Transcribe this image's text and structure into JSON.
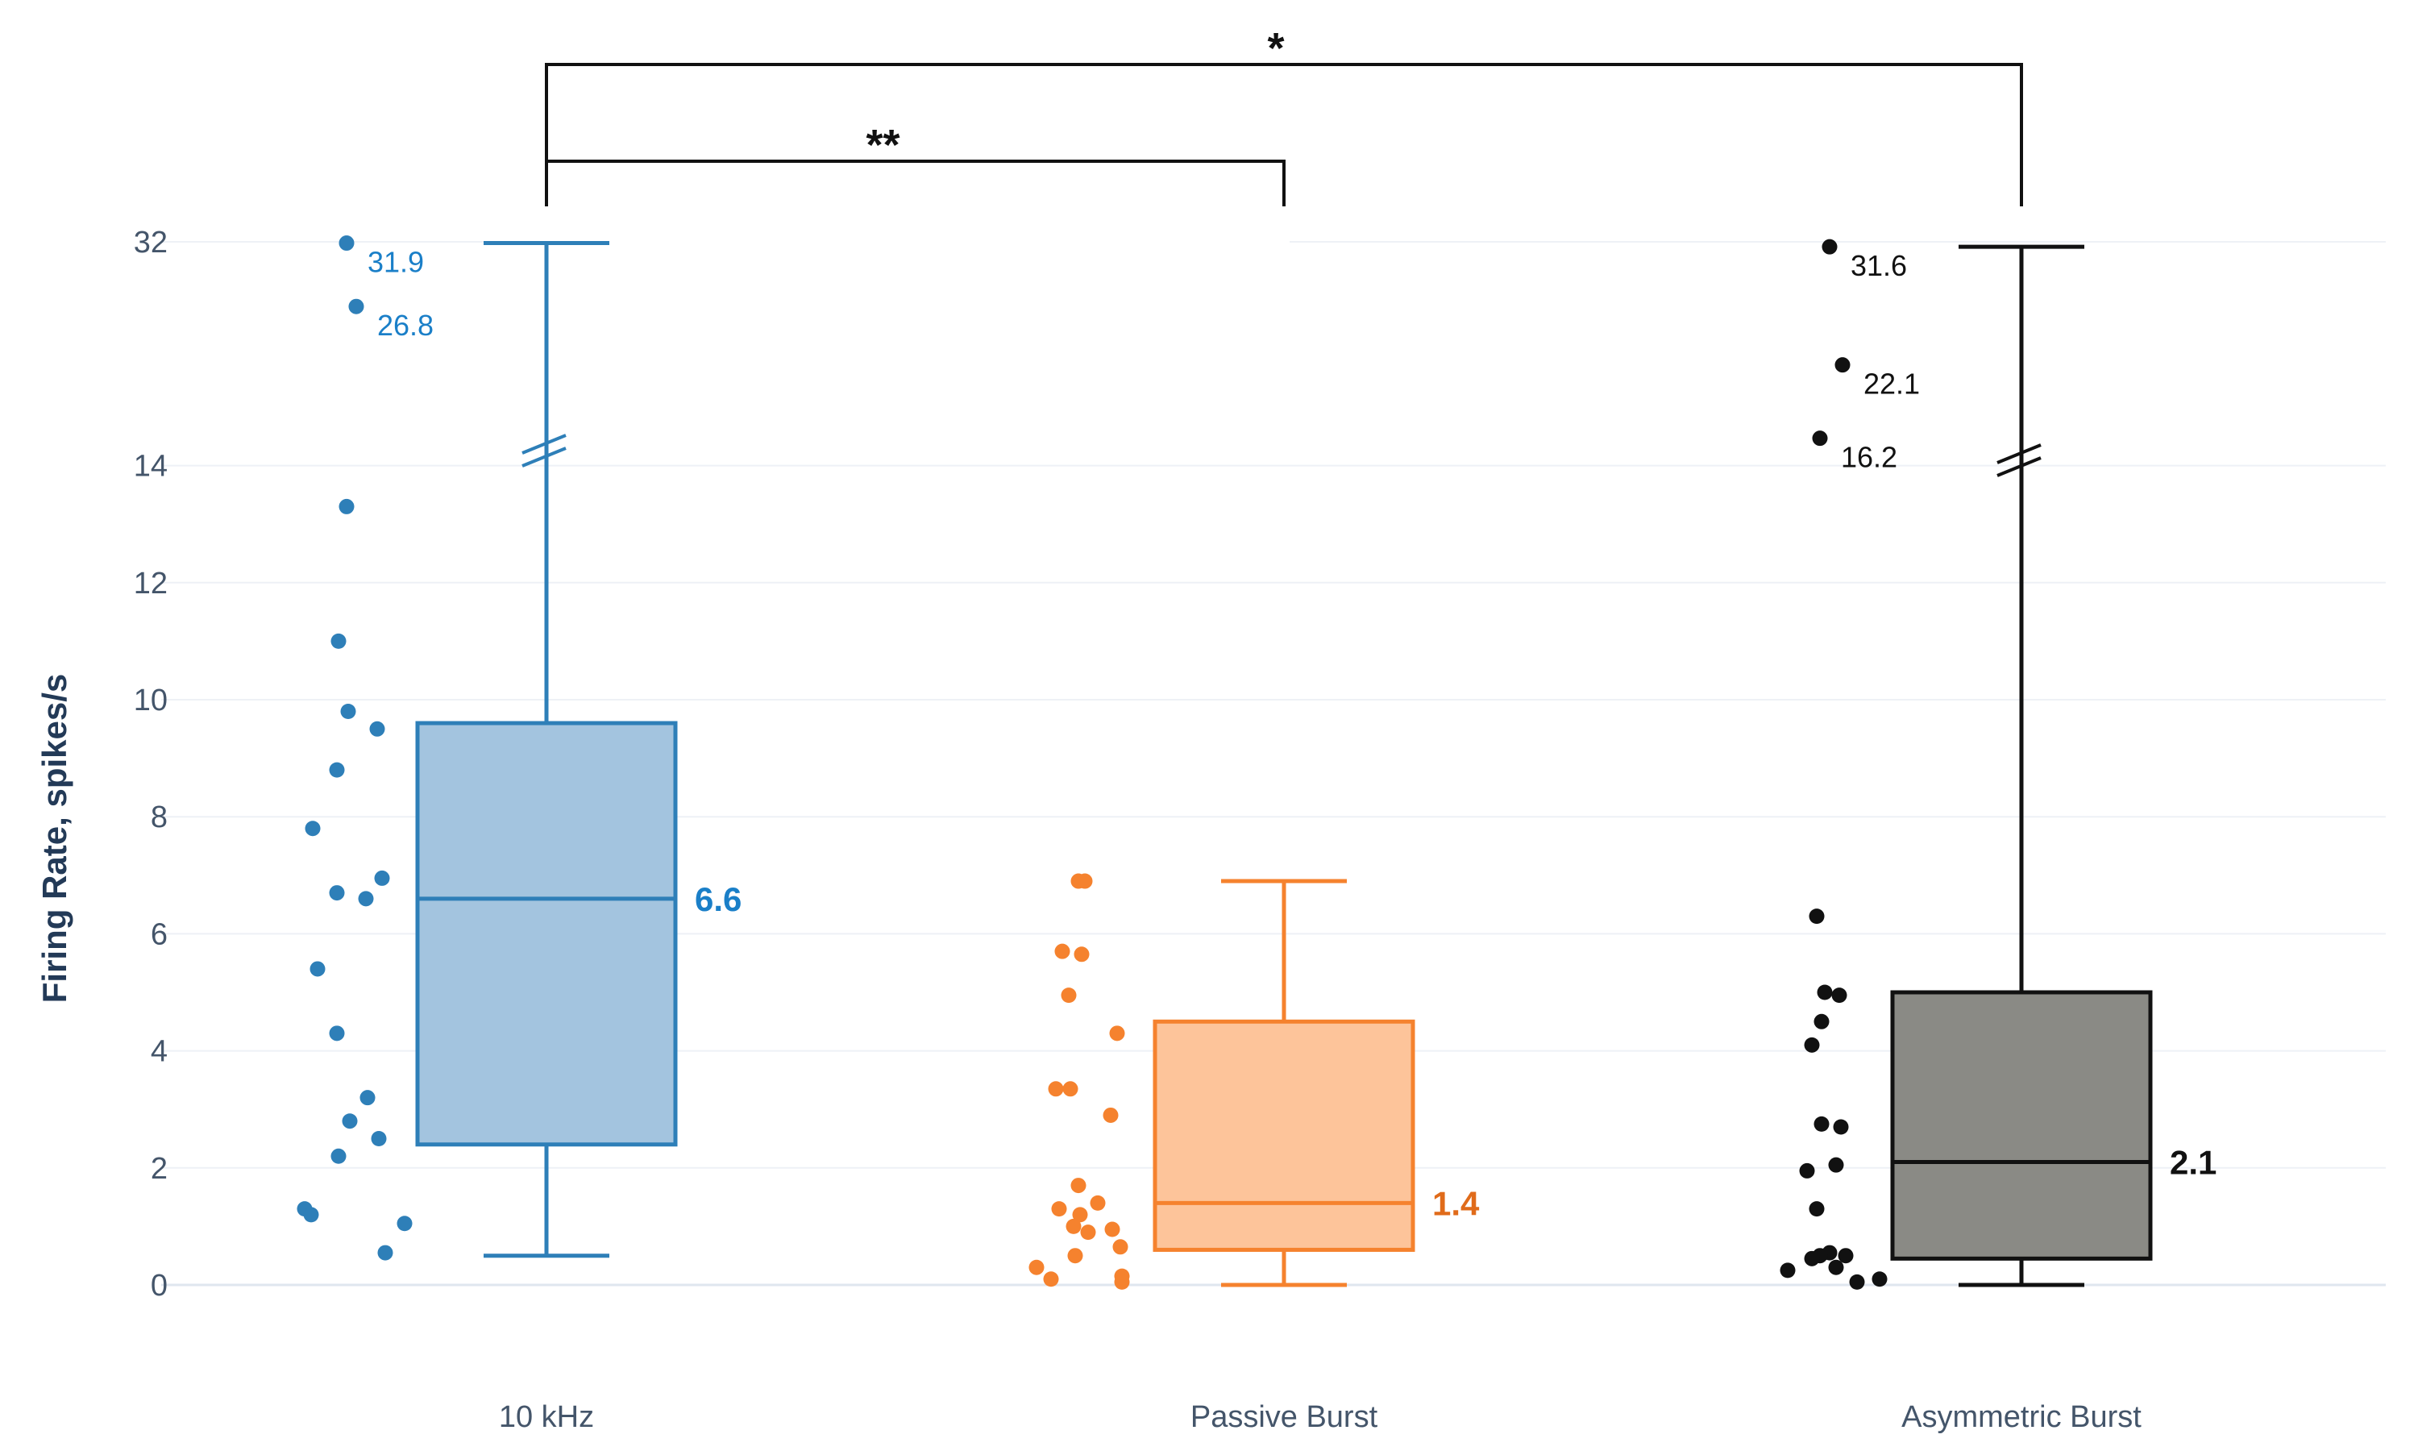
{
  "chart_data": {
    "type": "box",
    "ylabel": "Firing Rate, spikes/s",
    "yticks": [
      "0",
      "2",
      "4",
      "6",
      "8",
      "10",
      "12",
      "14",
      "32"
    ],
    "axis_break": {
      "lower_max": 14,
      "upper_label": 32
    },
    "grid": true,
    "groups": [
      {
        "name": "10 kHz",
        "color": "#2e7fb8",
        "fill": "#a3c4df",
        "label_color": "#1a7fc8",
        "whisker_low": 0.5,
        "q1": 2.4,
        "median": 6.6,
        "median_label": "6.6",
        "q3": 9.6,
        "whisker_high": 31.9,
        "points": [
          13.3,
          11.0,
          9.8,
          9.5,
          8.8,
          7.8,
          6.95,
          6.7,
          6.6,
          5.4,
          4.3,
          3.2,
          2.8,
          2.5,
          2.2,
          1.3,
          1.2,
          1.05,
          0.55
        ],
        "outliers": [
          31.9,
          26.8
        ],
        "outlier_labels": [
          "31.9",
          "26.8"
        ]
      },
      {
        "name": "Passive Burst",
        "color": "#f5822e",
        "fill": "#fdc49a",
        "label_color": "#e06b1a",
        "whisker_low": 0.0,
        "q1": 0.6,
        "median": 1.4,
        "median_label": "1.4",
        "q3": 4.5,
        "whisker_high": 6.9,
        "points": [
          6.9,
          6.9,
          5.7,
          5.65,
          4.95,
          4.3,
          3.35,
          3.35,
          2.9,
          1.7,
          1.4,
          1.3,
          1.2,
          1.0,
          0.95,
          0.9,
          0.65,
          0.5,
          0.3,
          0.15,
          0.1,
          0.05
        ],
        "outliers": [],
        "outlier_labels": []
      },
      {
        "name": "Asymmetric Burst",
        "color": "#111111",
        "fill": "#8a8a85",
        "label_color": "#111111",
        "whisker_low": 0.0,
        "q1": 0.45,
        "median": 2.1,
        "median_label": "2.1",
        "q3": 5.0,
        "whisker_high": 31.6,
        "points": [
          6.3,
          5.0,
          4.95,
          4.5,
          4.1,
          2.75,
          2.7,
          2.05,
          1.95,
          1.3,
          0.55,
          0.5,
          0.5,
          0.45,
          0.3,
          0.25,
          0.1,
          0.05
        ],
        "outliers": [
          31.6,
          22.1,
          16.2
        ],
        "outlier_labels": [
          "31.6",
          "22.1",
          "16.2"
        ]
      }
    ],
    "significance": [
      {
        "from": "10 kHz",
        "to": "Passive Burst",
        "label": "**"
      },
      {
        "from": "10 kHz",
        "to": "Asymmetric Burst",
        "label": "*"
      }
    ]
  }
}
